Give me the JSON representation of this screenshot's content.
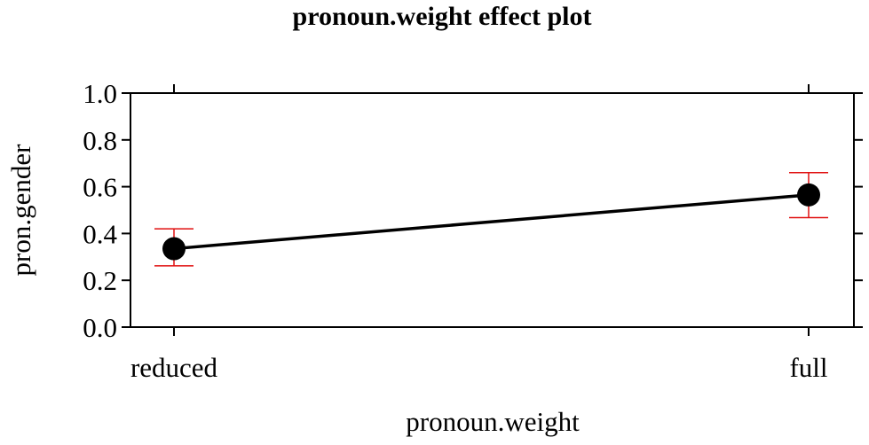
{
  "chart_data": {
    "type": "line",
    "title": "pronoun.weight effect plot",
    "xlabel": "pronoun.weight",
    "ylabel": "pron.gender",
    "categories": [
      "reduced",
      "full"
    ],
    "series": [
      {
        "values": [
          0.335,
          0.565
        ],
        "lower": [
          0.262,
          0.468
        ],
        "upper": [
          0.42,
          0.66
        ]
      }
    ],
    "ylim": [
      0.0,
      1.0
    ],
    "yticks": [
      "0.0",
      "0.2",
      "0.4",
      "0.6",
      "0.8",
      "1.0"
    ],
    "grid": false,
    "colors": {
      "line": "#000000",
      "point": "#000000",
      "error_bar": "#e01010",
      "axis": "#000000"
    }
  }
}
